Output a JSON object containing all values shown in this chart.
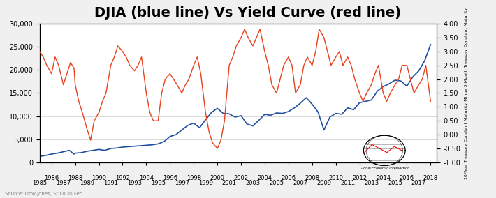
{
  "title": "DJIA (blue line) Vs Yield Curve (red line)",
  "title_fontsize": 14,
  "source_text": "Source: Dow Jones, St Louis Fed",
  "right_ylabel": "10-Year Treasury Constant Maturity Minus 3-Month Treasury Constant Maturity",
  "xlim": [
    1985.0,
    2018.5
  ],
  "ylim_left": [
    0,
    30000
  ],
  "ylim_right": [
    -1.0,
    4.0
  ],
  "yticks_left": [
    0,
    5000,
    10000,
    15000,
    20000,
    25000,
    30000
  ],
  "yticks_right": [
    -1.0,
    -0.5,
    0.0,
    0.5,
    1.0,
    1.5,
    2.0,
    2.5,
    3.0,
    3.5,
    4.0
  ],
  "xticks_major": [
    1986,
    1988,
    1990,
    1992,
    1994,
    1996,
    1998,
    2000,
    2002,
    2004,
    2006,
    2008,
    2010,
    2012,
    2014,
    2016,
    2018
  ],
  "xticks_minor": [
    1985,
    1987,
    1989,
    1991,
    1993,
    1995,
    1997,
    1999,
    2001,
    2003,
    2005,
    2007,
    2009,
    2011,
    2013,
    2015,
    2017
  ],
  "djia_color": "#1f4e9e",
  "yield_color": "#e8401c",
  "bg_color": "#f0f0f0",
  "plot_bg_color": "#ffffff",
  "grid_color": "#cccccc",
  "djia_data": {
    "years": [
      1985.0,
      1985.5,
      1986.0,
      1986.5,
      1987.0,
      1987.5,
      1987.9,
      1988.0,
      1988.5,
      1989.0,
      1989.5,
      1990.0,
      1990.5,
      1991.0,
      1991.5,
      1992.0,
      1992.5,
      1993.0,
      1993.5,
      1994.0,
      1994.5,
      1995.0,
      1995.5,
      1996.0,
      1996.5,
      1997.0,
      1997.5,
      1998.0,
      1998.5,
      1999.0,
      1999.5,
      2000.0,
      2000.5,
      2001.0,
      2001.5,
      2002.0,
      2002.5,
      2003.0,
      2003.5,
      2004.0,
      2004.5,
      2005.0,
      2005.5,
      2006.0,
      2006.5,
      2007.0,
      2007.5,
      2008.0,
      2008.5,
      2009.0,
      2009.5,
      2010.0,
      2010.5,
      2011.0,
      2011.5,
      2012.0,
      2012.5,
      2013.0,
      2013.5,
      2014.0,
      2014.5,
      2015.0,
      2015.5,
      2016.0,
      2016.5,
      2017.0,
      2017.5,
      2018.0
    ],
    "values": [
      1300,
      1500,
      1800,
      2000,
      2300,
      2600,
      1800,
      2000,
      2100,
      2400,
      2600,
      2800,
      2600,
      3000,
      3100,
      3300,
      3400,
      3500,
      3600,
      3700,
      3800,
      4000,
      4500,
      5600,
      6000,
      7000,
      8000,
      8500,
      7500,
      9200,
      10800,
      11700,
      10600,
      10500,
      9800,
      10100,
      8300,
      7900,
      9100,
      10400,
      10200,
      10700,
      10600,
      11000,
      11800,
      12800,
      14000,
      12600,
      10900,
      7000,
      9800,
      10600,
      10400,
      11800,
      11400,
      12900,
      13200,
      13500,
      15400,
      16400,
      17000,
      17800,
      17600,
      16500,
      18500,
      19800,
      22000,
      25500
    ]
  },
  "yield_data": {
    "years": [
      1985.0,
      1985.3,
      1985.6,
      1986.0,
      1986.3,
      1986.6,
      1987.0,
      1987.3,
      1987.6,
      1987.9,
      1988.0,
      1988.3,
      1988.6,
      1989.0,
      1989.3,
      1989.6,
      1990.0,
      1990.3,
      1990.6,
      1991.0,
      1991.3,
      1991.6,
      1992.0,
      1992.3,
      1992.6,
      1993.0,
      1993.3,
      1993.6,
      1994.0,
      1994.3,
      1994.6,
      1995.0,
      1995.3,
      1995.6,
      1996.0,
      1996.3,
      1996.6,
      1997.0,
      1997.3,
      1997.6,
      1998.0,
      1998.3,
      1998.6,
      1999.0,
      1999.3,
      1999.6,
      2000.0,
      2000.3,
      2000.6,
      2001.0,
      2001.3,
      2001.6,
      2002.0,
      2002.3,
      2002.6,
      2003.0,
      2003.3,
      2003.6,
      2004.0,
      2004.3,
      2004.6,
      2005.0,
      2005.3,
      2005.6,
      2006.0,
      2006.3,
      2006.6,
      2007.0,
      2007.3,
      2007.6,
      2008.0,
      2008.3,
      2008.6,
      2009.0,
      2009.3,
      2009.6,
      2010.0,
      2010.3,
      2010.6,
      2011.0,
      2011.3,
      2011.6,
      2012.0,
      2012.3,
      2012.6,
      2013.0,
      2013.3,
      2013.6,
      2014.0,
      2014.3,
      2014.6,
      2015.0,
      2015.3,
      2015.6,
      2016.0,
      2016.3,
      2016.6,
      2017.0,
      2017.3,
      2017.6,
      2018.0
    ],
    "values": [
      3.0,
      2.8,
      2.5,
      2.2,
      2.8,
      2.5,
      1.8,
      2.2,
      2.6,
      2.4,
      1.8,
      1.2,
      0.8,
      0.2,
      -0.2,
      0.5,
      0.8,
      1.2,
      1.5,
      2.5,
      2.8,
      3.2,
      3.0,
      2.8,
      2.5,
      2.3,
      2.5,
      2.8,
      1.5,
      0.8,
      0.5,
      0.5,
      1.5,
      2.0,
      2.2,
      2.0,
      1.8,
      1.5,
      1.8,
      2.0,
      2.5,
      2.8,
      2.2,
      0.8,
      0.1,
      -0.3,
      -0.5,
      -0.2,
      0.5,
      2.5,
      2.8,
      3.2,
      3.5,
      3.8,
      3.5,
      3.2,
      3.5,
      3.8,
      3.0,
      2.5,
      1.8,
      1.5,
      2.0,
      2.5,
      2.8,
      2.5,
      1.5,
      1.8,
      2.5,
      2.8,
      2.5,
      3.0,
      3.8,
      3.5,
      3.0,
      2.5,
      2.8,
      3.0,
      2.5,
      2.8,
      2.5,
      2.0,
      1.5,
      1.2,
      1.5,
      1.8,
      2.2,
      2.5,
      1.5,
      1.2,
      1.5,
      1.8,
      2.0,
      2.5,
      2.5,
      2.0,
      1.5,
      1.8,
      2.0,
      2.5,
      1.2
    ]
  }
}
